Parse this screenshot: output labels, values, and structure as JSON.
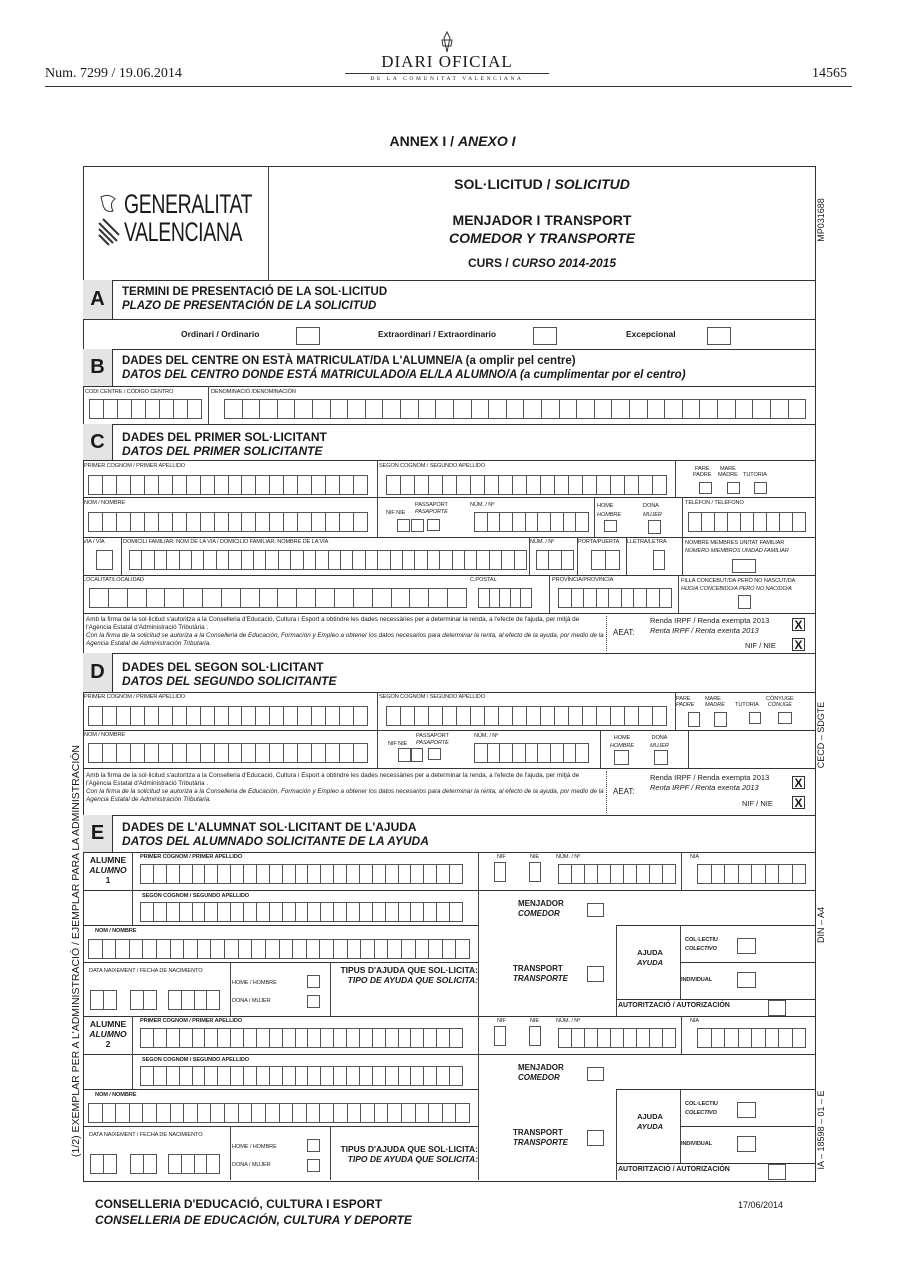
{
  "header": {
    "issue": "Num. 7299 / 19.06.2014",
    "page": "14565",
    "logo_title": "DIARI OFICIAL",
    "logo_subtitle": "DE LA COMUNITAT VALENCIANA"
  },
  "annex": {
    "ca": "ANNEX I / ",
    "es": "ANEXO I"
  },
  "form": {
    "logo_line1": "GENERALITAT",
    "logo_line2": "VALENCIANA",
    "title_ca": "SOL·LICITUD / ",
    "title_es": "SOLICITUD",
    "subject_ca": "MENJADOR I TRANSPORT",
    "subject_es": "COMEDOR Y TRANSPORTE",
    "course_ca": "CURS / ",
    "course_es": "CURSO 2014-2015"
  },
  "side": {
    "code": "MP031688",
    "cecd": "CECD – SDGTE",
    "din": "DIN – A4",
    "ia": "IA – 18598 – 01 – E",
    "copy": "(1/2) EXEMPLAR PER A L'ADMINISTRACIÓ / EJEMPLAR PARA LA ADMINISTRACIÓN"
  },
  "sectionA": {
    "letter": "A",
    "title_ca": "TERMINI DE PRESENTACIÓ DE LA SOL·LICITUD",
    "title_es": "PLAZO DE PRESENTACIÓN DE LA SOLICITUD",
    "opt1": "Ordinari / Ordinario",
    "opt2": "Extraordinari / Extraordinario",
    "opt3": "Excepcional"
  },
  "sectionB": {
    "letter": "B",
    "title_ca": "DADES DEL CENTRE ON ESTÀ MATRICULAT/DA L'ALUMNE/A (a omplir pel centre)",
    "title_es": "DATOS DEL CENTRO DONDE ESTÁ MATRICULADO/A EL/LA ALUMNO/A (a cumplimentar por el centro)",
    "code_label": "CODI CENTRE / CÓDIGO CENTRO",
    "name_label": "DENOMINACIÓ /DENOMINACIÓN"
  },
  "labels": {
    "first_surname": "PRIMER COGNOM / PRIMER APELLIDO",
    "second_surname": "SEGON COGNOM / SEGUNDO APELLIDO",
    "name": "NOM / NOMBRE",
    "pare": "PARE",
    "padre": "PADRE",
    "mare": "MARE",
    "madre": "MADRE",
    "tutoria": "TUTORIA",
    "conyuge_ca": "CÒNYUGE",
    "conyuge_es": "CÓNUGE",
    "nif_nie": "NIF NIE",
    "passaport": "PASSAPORT",
    "pasaporte": "PASAPORTE",
    "num": "NÚM. / Nº",
    "home": "HOME",
    "hombre": "HOMBRE",
    "dona": "DONA",
    "mujer": "MUJER",
    "telefon": "TELÈFON / TELÉFONO",
    "via": "VIA / VÍA",
    "domicili": "DOMICILI FAMILIAR: NOM DE LA VIA / DOMICILIO FAMILIAR: NOMBRE DE LA VÍA",
    "porta": "PORTA/PUERTA",
    "lletra": "LLETRA/LETRA",
    "members_ca": "NOMBRE MEMBRES UNITAT FAMILIAR",
    "members_es": "NÚMERO MIEMBROS UNIDAD FAMILIAR",
    "localitat": "LOCALITAT/LOCALIDAD",
    "cpostal": "C.POSTAL",
    "provincia": "PROVÍNCIA/PROVINCIA",
    "unborn_ca": "FILLA CONCEBUT/DA PERÒ NO NASCUT/DA",
    "unborn_es": "HIJO/A CONCEBIDO/A PERO NO NACIDO/A",
    "auth_ca": "Amb la firma de la sol·licitud s'autoritza a la Conselleria d'Educació, Cultura i Esport a obtindre les dades necessàries per a determinar la renda, a l'efecte de l'ajuda, per mitjà de l'Agència Estatal d'Administració Tributària .",
    "auth_es": "Con la firma de la solicitud se autoriza a la Conselleria de Educación, Formación y Empleo a obtener los datos necesarios para determinar la renta, al efecto de la ayuda, por medio de la Agencia Estatal de Administración Tributaria.",
    "aeat": "AEAT:",
    "renda_ca": "Renda IRPF / Renda exempta 2013",
    "renda_es": "Renta IRPF / Renta exenta  2013",
    "nif_nie_check": "NIF / NIE",
    "check_mark": "X"
  },
  "sectionC": {
    "letter": "C",
    "title_ca": "DADES DEL PRIMER SOL·LICITANT",
    "title_es": "DATOS DEL PRIMER SOLICITANTE"
  },
  "sectionD": {
    "letter": "D",
    "title_ca": "DADES DEL SEGON SOL·LICITANT",
    "title_es": "DATOS DEL SEGUNDO SOLICITANTE"
  },
  "sectionE": {
    "letter": "E",
    "title_ca": "DADES DE L'ALUMNAT SOL·LICITANT DE L'AJUDA",
    "title_es": "DATOS DEL ALUMNADO SOLICITANTE DE LA AYUDA",
    "alumne": "ALUMNE",
    "alumno": "ALUMNO",
    "num1": "1",
    "num2": "2",
    "nif": "NIF",
    "nie": "NIE",
    "nia": "NIA",
    "birth": "DATA NAIXEMENT / FECHA DE NACIMIENTO",
    "home": "HOME / HOMBRE",
    "dona": "DONA / MUJER",
    "type_ca": "TIPUS D'AJUDA QUE SOL·LICITA:",
    "type_es": "TIPO DE AYUDA QUE SOLICITA:",
    "menjador": "MENJADOR",
    "comedor": "COMEDOR",
    "transport": "TRANSPORT",
    "transporte": "TRANSPORTE",
    "ajuda": "AJUDA",
    "ayuda": "AYUDA",
    "collectiu": "COL·LECTIU",
    "colectivo": "COLECTIVO",
    "individual": "INDIVIDUAL",
    "autoritzacio": "AUTORITZACIÓ / AUTORIZACIÓN"
  },
  "footer": {
    "dept_ca": "CONSELLERIA D'EDUCACIÓ, CULTURA I ESPORT",
    "dept_es": "CONSELLERIA DE EDUCACIÓN, CULTURA Y DEPORTE",
    "date": "17/06/2014"
  }
}
